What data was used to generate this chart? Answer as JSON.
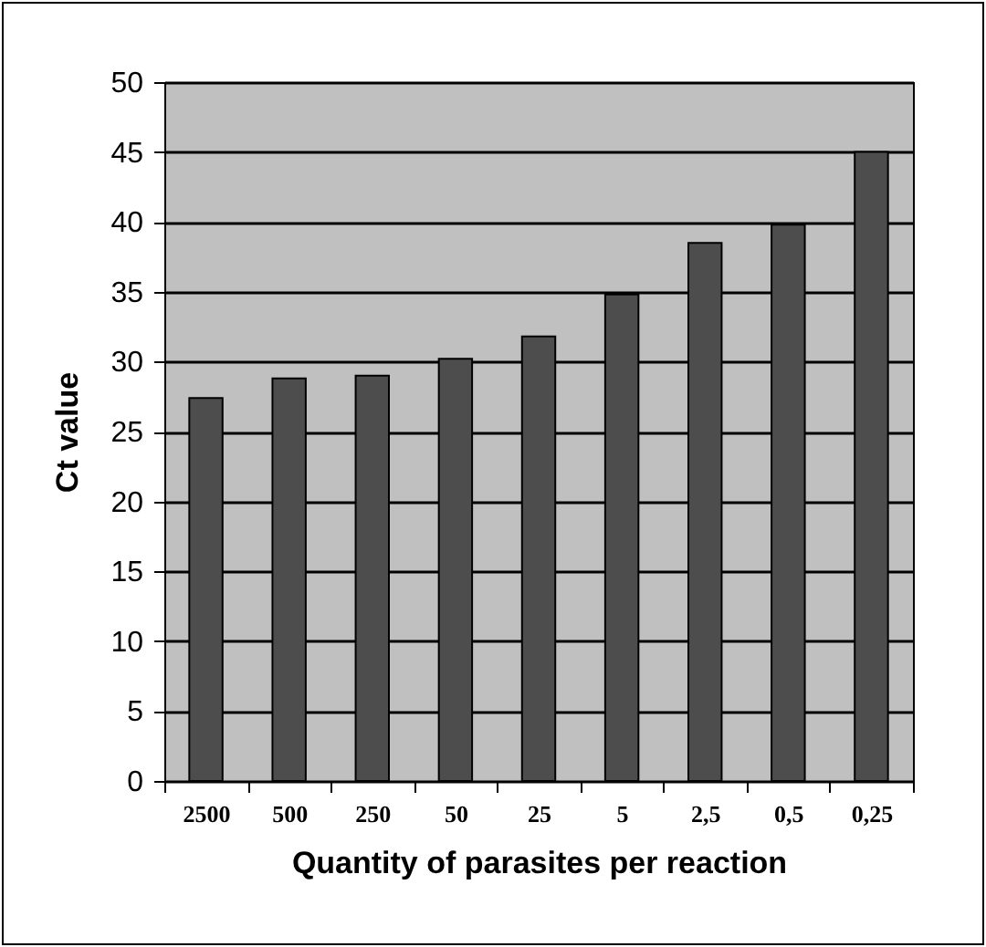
{
  "chart_data": {
    "type": "bar",
    "xlabel": "Quantity of parasites per reaction",
    "ylabel": "Ct value",
    "categories": [
      "2500",
      "500",
      "250",
      "50",
      "25",
      "5",
      "2,5",
      "0,5",
      "0,25"
    ],
    "values": [
      27.4,
      28.8,
      29.0,
      30.2,
      31.8,
      34.8,
      38.5,
      39.8,
      45
    ],
    "color": "#4d4d4d",
    "ylim": [
      0,
      50
    ],
    "yticks": [
      0,
      5,
      10,
      15,
      20,
      25,
      30,
      35,
      40,
      45,
      50
    ],
    "grid": "y"
  }
}
